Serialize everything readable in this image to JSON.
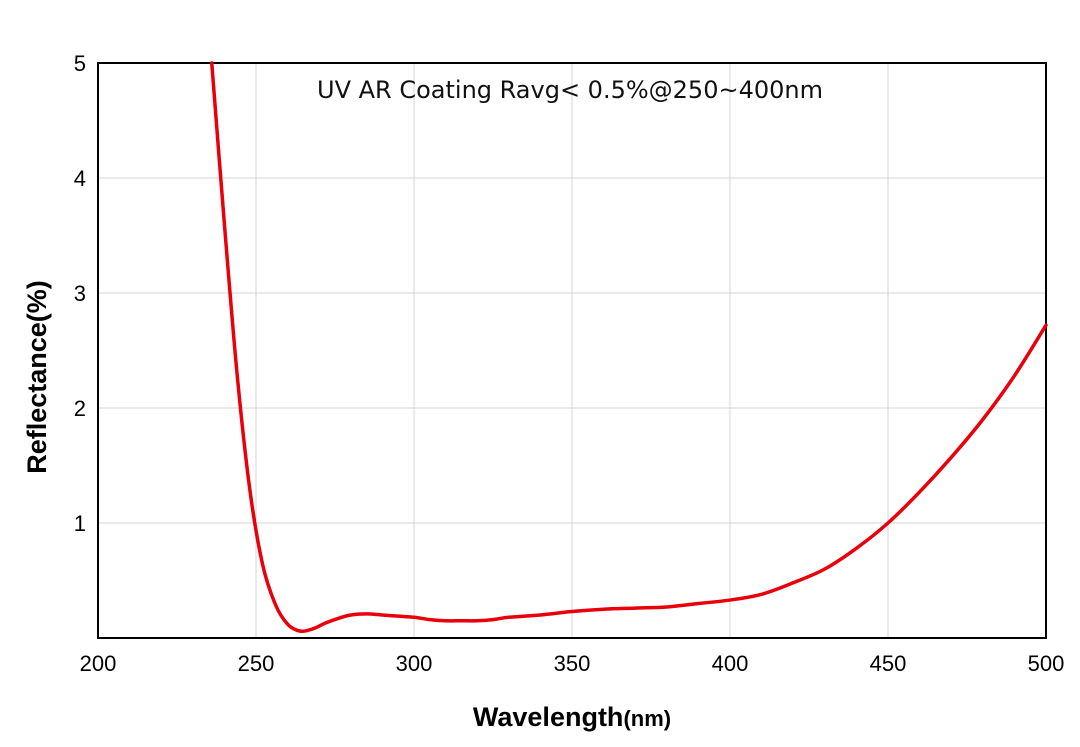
{
  "chart_data": {
    "type": "line",
    "title": "UV AR Coating Ravg< 0.5%@250~400nm",
    "xlabel": "Wavelength",
    "xlabel_unit": "(nm)",
    "ylabel": "Reflectance(%)",
    "xlim": [
      200,
      500
    ],
    "ylim": [
      0,
      5
    ],
    "x_ticks": [
      "200",
      "250",
      "300",
      "350",
      "400",
      "450",
      "500"
    ],
    "y_ticks": [
      "1",
      "2",
      "3",
      "4",
      "5"
    ],
    "grid": true,
    "colors": {
      "line": "#e8000b",
      "grid": "#d4d4d4",
      "frame": "#000000"
    },
    "series": [
      {
        "x": [
          236,
          240,
          244,
          248,
          252,
          256,
          260,
          264,
          268,
          272,
          276,
          280,
          285,
          290,
          295,
          300,
          305,
          310,
          315,
          320,
          325,
          330,
          340,
          350,
          360,
          370,
          380,
          390,
          400,
          410,
          420,
          430,
          440,
          450,
          460,
          470,
          480,
          490,
          500
        ],
        "y": [
          5.0,
          3.6,
          2.3,
          1.3,
          0.65,
          0.3,
          0.12,
          0.06,
          0.08,
          0.13,
          0.17,
          0.2,
          0.21,
          0.2,
          0.19,
          0.18,
          0.16,
          0.15,
          0.15,
          0.15,
          0.16,
          0.18,
          0.2,
          0.23,
          0.25,
          0.26,
          0.27,
          0.3,
          0.33,
          0.38,
          0.48,
          0.6,
          0.78,
          1.0,
          1.27,
          1.57,
          1.9,
          2.28,
          2.72
        ]
      }
    ]
  }
}
